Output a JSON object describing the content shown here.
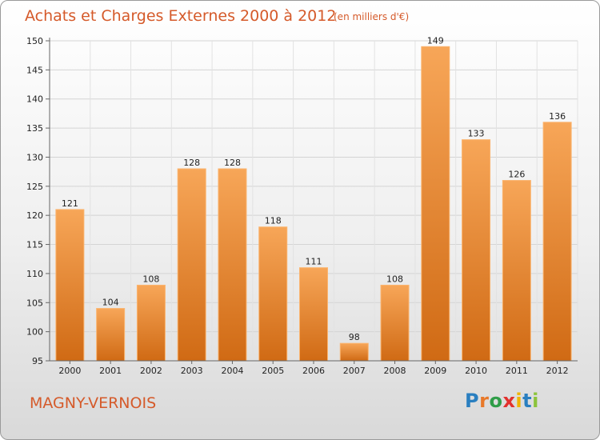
{
  "title": "Achats et Charges Externes 2000 à 2012",
  "subtitle": "(en milliers d'€)",
  "town": "MAGNY-VERNOIS",
  "logo": {
    "text": "Proxiti",
    "letters": [
      "P",
      "r",
      "o",
      "x",
      "i",
      "t",
      "i"
    ],
    "colors": [
      "#2a7fc0",
      "#e8792a",
      "#2f9d48",
      "#e2312d",
      "#f0b400",
      "#2a7fc0",
      "#8cc43c"
    ]
  },
  "colors": {
    "bar": "#f08a2e",
    "title": "#d55a2a"
  },
  "chart_data": {
    "type": "bar",
    "title": "Achats et Charges Externes 2000 à 2012",
    "subtitle": "(en milliers d'€)",
    "categories": [
      "2000",
      "2001",
      "2002",
      "2003",
      "2004",
      "2005",
      "2006",
      "2007",
      "2008",
      "2009",
      "2010",
      "2011",
      "2012"
    ],
    "values": [
      121,
      104,
      108,
      128,
      128,
      118,
      111,
      98,
      108,
      149,
      133,
      126,
      136
    ],
    "ylim": [
      95,
      150
    ],
    "yticks": [
      95,
      100,
      105,
      110,
      115,
      120,
      125,
      130,
      135,
      140,
      145,
      150
    ],
    "grid": true
  }
}
